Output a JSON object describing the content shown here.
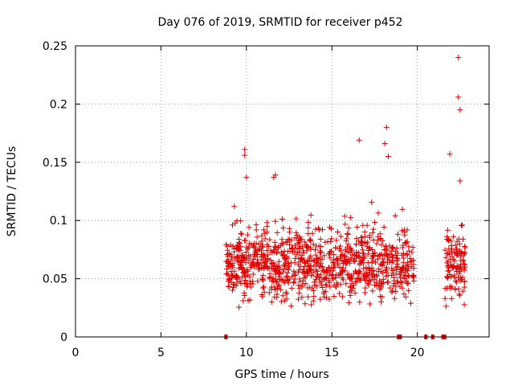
{
  "chart_data": {
    "type": "scatter",
    "title": "Day 076 of 2019, SRMTID for receiver p452",
    "xlabel": "GPS time / hours",
    "ylabel": "SRMTID / TECUs",
    "xlim": [
      0,
      24.2
    ],
    "ylim": [
      0,
      0.25
    ],
    "xticks": [
      0,
      5,
      10,
      15,
      20
    ],
    "xtick_labels": [
      "0",
      "5",
      "10",
      "15",
      "20"
    ],
    "yticks": [
      0,
      0.05,
      0.1,
      0.15,
      0.2,
      0.25
    ],
    "ytick_labels": [
      "0",
      "0.05",
      "0.1",
      "0.15",
      "0.2",
      "0.25"
    ],
    "grid": true,
    "marker": "+",
    "color": "#e00000",
    "series": [
      {
        "name": "SRMTID",
        "x_range": [
          8.8,
          22.8
        ],
        "gap": [
          19.8,
          21.6
        ],
        "y_range_typical": [
          0.02,
          0.1
        ],
        "notable_points": [
          {
            "x": 9.9,
            "y": 0.161
          },
          {
            "x": 9.9,
            "y": 0.156
          },
          {
            "x": 10.0,
            "y": 0.137
          },
          {
            "x": 11.6,
            "y": 0.137
          },
          {
            "x": 11.7,
            "y": 0.139
          },
          {
            "x": 16.6,
            "y": 0.169
          },
          {
            "x": 18.2,
            "y": 0.18
          },
          {
            "x": 18.1,
            "y": 0.166
          },
          {
            "x": 18.3,
            "y": 0.155
          },
          {
            "x": 21.9,
            "y": 0.157
          },
          {
            "x": 22.4,
            "y": 0.24
          },
          {
            "x": 22.4,
            "y": 0.206
          },
          {
            "x": 22.5,
            "y": 0.195
          },
          {
            "x": 22.5,
            "y": 0.134
          }
        ],
        "zero_points": [
          {
            "x": 8.8,
            "y": 0
          },
          {
            "x": 18.9,
            "y": 0
          },
          {
            "x": 19.0,
            "y": 0
          },
          {
            "x": 20.5,
            "y": 0
          },
          {
            "x": 20.9,
            "y": 0
          },
          {
            "x": 21.5,
            "y": 0
          },
          {
            "x": 21.6,
            "y": 0
          }
        ]
      }
    ]
  }
}
